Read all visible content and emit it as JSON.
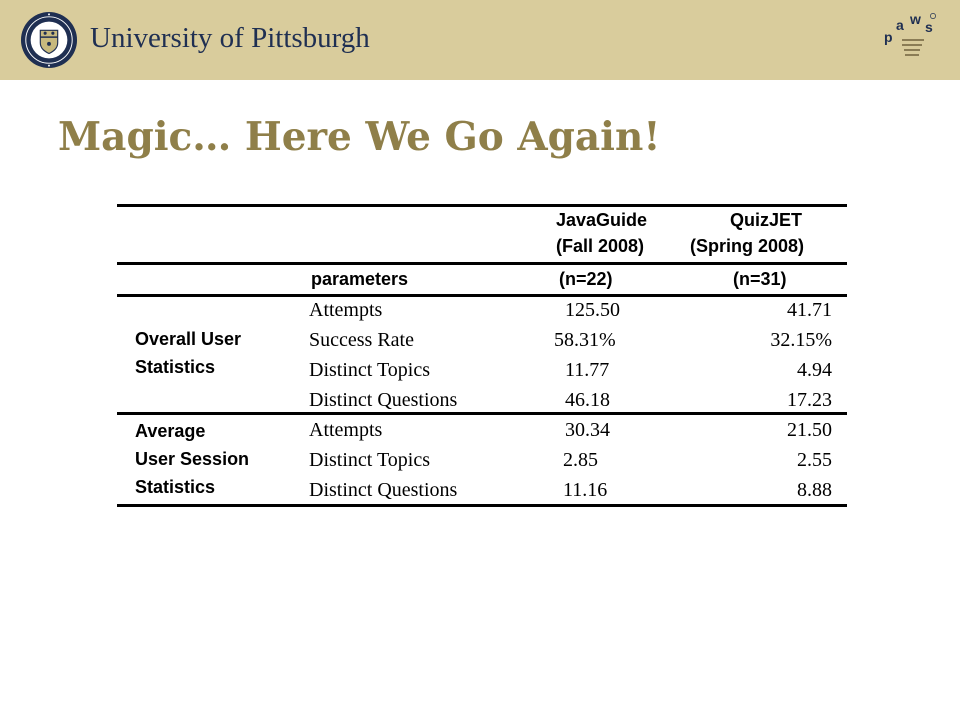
{
  "header": {
    "institution": "University of Pittsburgh",
    "logo_icon": "university-seal-icon",
    "paws_icon": "paws-logo-icon",
    "paws_letters": [
      "p",
      "a",
      "w",
      "s"
    ],
    "background_color": "#d9cc9c",
    "text_color": "#1f2f52"
  },
  "slide": {
    "title": "Magic… Here We Go Again!",
    "title_color": "#8f7f49"
  },
  "table": {
    "col_headers": {
      "parameters": "parameters",
      "system_1": [
        "JavaGuide",
        "(Fall  2008)",
        "(n=22)"
      ],
      "system_2": [
        "QuizJET",
        "(Spring 2008)",
        "(n=31)"
      ]
    },
    "groups": [
      {
        "label_lines": [
          "Overall User",
          "Statistics"
        ],
        "rows": [
          {
            "parameter": "Attempts",
            "v1": "125.50",
            "v2": "41.71"
          },
          {
            "parameter": "Success  Rate",
            "v1": "58.31%",
            "v2": "32.15%"
          },
          {
            "parameter": "Distinct  Topics",
            "v1": "11.77",
            "v2": "4.94"
          },
          {
            "parameter": "Distinct  Questions",
            "v1": "46.18",
            "v2": "17.23"
          }
        ]
      },
      {
        "label_lines": [
          "Average",
          "User Session",
          "Statistics"
        ],
        "rows": [
          {
            "parameter": "Attempts",
            "v1": "30.34",
            "v2": "21.50"
          },
          {
            "parameter": "Distinct  Topics",
            "v1": "2.85",
            "v2": "2.55"
          },
          {
            "parameter": "Distinct  Questions",
            "v1": "11.16",
            "v2": "8.88"
          }
        ]
      }
    ]
  }
}
